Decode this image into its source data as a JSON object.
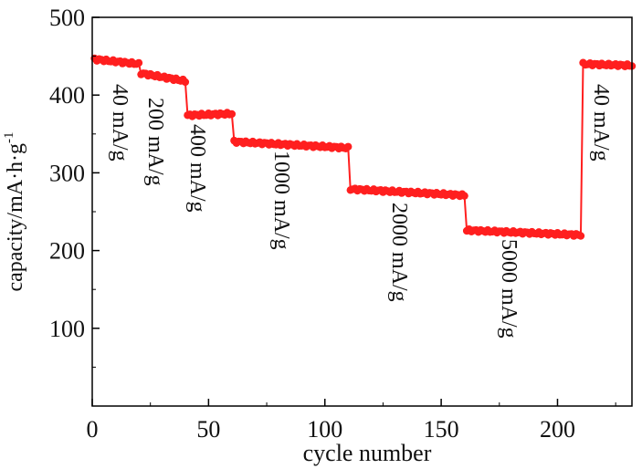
{
  "chart_data": {
    "type": "scatter",
    "xlabel": "cycle number",
    "ylabel": "capacity/mA·h·g",
    "ylabel_superscript": "-1",
    "xlim": [
      0,
      232
    ],
    "ylim": [
      0,
      500
    ],
    "x_ticks": [
      0,
      50,
      100,
      150,
      200
    ],
    "y_ticks": [
      100,
      200,
      300,
      400,
      500
    ],
    "marker_color": "#ff1f1f",
    "grid": false,
    "segments": [
      {
        "label": "40 mA/g",
        "x_start": 1,
        "x_end": 20,
        "y_start": 446,
        "y_end": 440
      },
      {
        "label": "200 mA/g",
        "x_start": 21,
        "x_end": 40,
        "y_start": 428,
        "y_end": 418
      },
      {
        "label": "400 mA/g",
        "x_start": 41,
        "x_end": 60,
        "y_start": 374,
        "y_end": 376
      },
      {
        "label": "1000 mA/g",
        "x_start": 61,
        "x_end": 110,
        "y_start": 340,
        "y_end": 332
      },
      {
        "label": "2000 mA/g",
        "x_start": 111,
        "x_end": 160,
        "y_start": 279,
        "y_end": 271
      },
      {
        "label": "5000 mA/g",
        "x_start": 161,
        "x_end": 210,
        "y_start": 226,
        "y_end": 220
      },
      {
        "label": "40 mA/g",
        "x_start": 211,
        "x_end": 232,
        "y_start": 440,
        "y_end": 438
      }
    ],
    "annotations": [
      {
        "text": "40 mA/g"
      },
      {
        "text": "200 mA/g"
      },
      {
        "text": "400 mA/g"
      },
      {
        "text": "1000 mA/g"
      },
      {
        "text": "2000 mA/g"
      },
      {
        "text": "5000 mA/g"
      },
      {
        "text": "40 mA/g"
      }
    ]
  }
}
